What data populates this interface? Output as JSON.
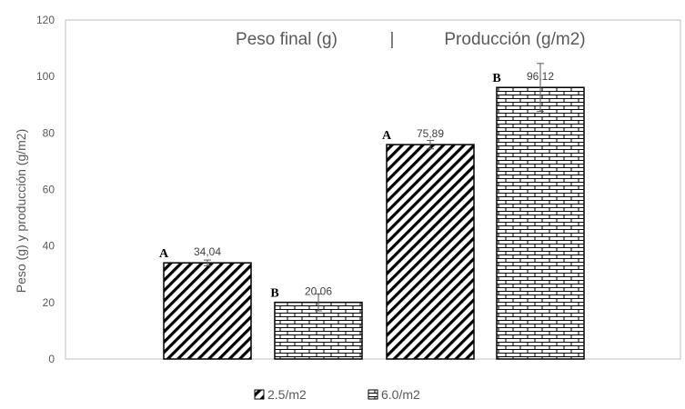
{
  "chart_data": {
    "type": "bar",
    "title": "",
    "xlabel": "",
    "ylabel": "Peso (g) y producción (g/m2)",
    "ylim": [
      0,
      120
    ],
    "yticks": [
      0,
      20,
      40,
      60,
      80,
      100,
      120
    ],
    "grid": false,
    "legend_position": "bottom",
    "group_titles": [
      "Peso final (g)",
      "|",
      "Producción (g/m2)"
    ],
    "categories": [
      "Peso final (g)",
      "Producción (g/m2)"
    ],
    "series": [
      {
        "name": "2.5/m2",
        "pattern": "diagonal-hatch",
        "values": [
          34.04,
          75.89
        ],
        "value_labels": [
          "34,04",
          "75,89"
        ],
        "error": [
          1.0,
          1.5
        ],
        "significance": [
          "A",
          "A"
        ]
      },
      {
        "name": "6.0/m2",
        "pattern": "brick",
        "values": [
          20.06,
          96.12
        ],
        "value_labels": [
          "20,06",
          "96,12"
        ],
        "error": [
          3.0,
          8.5
        ],
        "significance": [
          "B",
          "B"
        ]
      }
    ]
  },
  "colors": {
    "bar_stroke": "#000000",
    "axis": "#bfbfbf",
    "text": "#595959"
  }
}
